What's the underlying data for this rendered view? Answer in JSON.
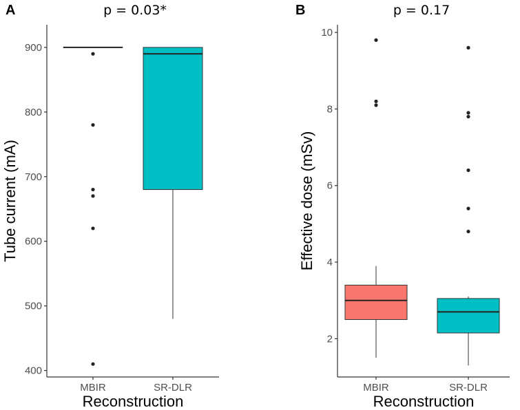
{
  "chart_data": [
    {
      "type": "boxplot",
      "panel": "A",
      "title": "p = 0.03*",
      "xlabel": "Reconstruction",
      "ylabel": "Tube current (mA)",
      "ylim": [
        390,
        935
      ],
      "yticks": [
        400,
        500,
        600,
        700,
        800,
        900
      ],
      "ytick_labels": [
        "400",
        "500",
        "600",
        "700",
        "800",
        "900"
      ],
      "categories": [
        "MBIR",
        "SR-DLR"
      ],
      "boxes": [
        {
          "name": "MBIR",
          "color": "#F8766D",
          "whisker_low": 900,
          "q1": 900,
          "median": 900,
          "q3": 900,
          "whisker_high": 900,
          "outliers": [
            890,
            780,
            680,
            670,
            620,
            410
          ]
        },
        {
          "name": "SR-DLR",
          "color": "#00BFC4",
          "whisker_low": 480,
          "q1": 680,
          "median": 890,
          "q3": 900,
          "whisker_high": 900,
          "outliers": []
        }
      ]
    },
    {
      "type": "boxplot",
      "panel": "B",
      "title": "p = 0.17",
      "xlabel": "Reconstruction",
      "ylabel": "Effective dose (mSv)",
      "ylim": [
        1.0,
        10.2
      ],
      "yticks": [
        2,
        4,
        6,
        8,
        10
      ],
      "ytick_labels": [
        "2",
        "4",
        "6",
        "8",
        "10"
      ],
      "categories": [
        "MBIR",
        "SR-DLR"
      ],
      "boxes": [
        {
          "name": "MBIR",
          "color": "#F8766D",
          "whisker_low": 1.5,
          "q1": 2.5,
          "median": 3.0,
          "q3": 3.4,
          "whisker_high": 3.9,
          "outliers": [
            9.8,
            8.2,
            8.1
          ]
        },
        {
          "name": "SR-DLR",
          "color": "#00BFC4",
          "whisker_low": 1.3,
          "q1": 2.15,
          "median": 2.7,
          "q3": 3.05,
          "whisker_high": 3.1,
          "outliers": [
            9.6,
            7.9,
            7.8,
            6.4,
            5.4,
            4.8
          ]
        }
      ]
    }
  ]
}
